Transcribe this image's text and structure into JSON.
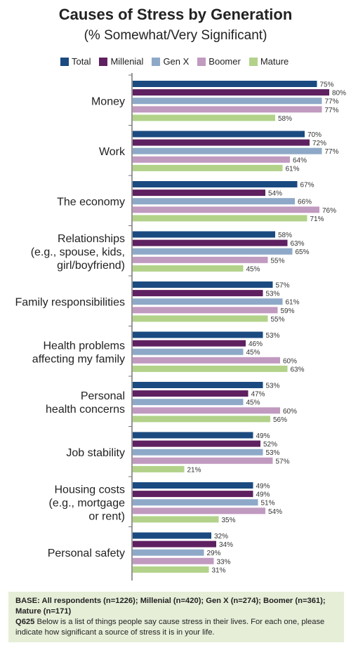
{
  "chart_data": {
    "type": "bar",
    "orientation": "horizontal",
    "title": "Causes of Stress by Generation",
    "subtitle": "(% Somewhat/Very Significant)",
    "categories": [
      [
        "Money"
      ],
      [
        "Work"
      ],
      [
        "The economy"
      ],
      [
        "Relationships",
        "(e.g., spouse, kids,",
        "girl/boyfriend)"
      ],
      [
        "Family responsibilities"
      ],
      [
        "Health problems",
        "affecting my family"
      ],
      [
        "Personal",
        "health concerns"
      ],
      [
        "Job stability"
      ],
      [
        "Housing costs",
        "(e.g., mortgage",
        "or rent)"
      ],
      [
        "Personal safety"
      ]
    ],
    "series": [
      {
        "name": "Total",
        "color": "#1a4a80",
        "values": [
          75,
          70,
          67,
          58,
          57,
          53,
          53,
          49,
          49,
          32
        ]
      },
      {
        "name": "Millenial",
        "color": "#5e2060",
        "values": [
          80,
          72,
          54,
          63,
          53,
          46,
          47,
          52,
          49,
          34
        ]
      },
      {
        "name": "Gen X",
        "color": "#8ea9c8",
        "values": [
          77,
          77,
          66,
          65,
          61,
          45,
          45,
          53,
          51,
          29
        ]
      },
      {
        "name": "Boomer",
        "color": "#c19ac0",
        "values": [
          77,
          64,
          76,
          55,
          59,
          60,
          60,
          57,
          54,
          33
        ]
      },
      {
        "name": "Mature",
        "color": "#b2d28a",
        "values": [
          58,
          61,
          71,
          45,
          55,
          63,
          56,
          21,
          35,
          31
        ]
      }
    ],
    "value_suffix": "%",
    "xlim": [
      0,
      100
    ],
    "grid": false,
    "legend": "top"
  },
  "footnote": {
    "base": "BASE: All respondents (n=1226); Millenial (n=420); Gen X (n=274); Boomer (n=361); Mature (n=171)",
    "qcode": "Q625",
    "question": " Below is a list of things people say cause stress in their lives. For each one, please indicate how significant a source of stress it is in your life."
  }
}
